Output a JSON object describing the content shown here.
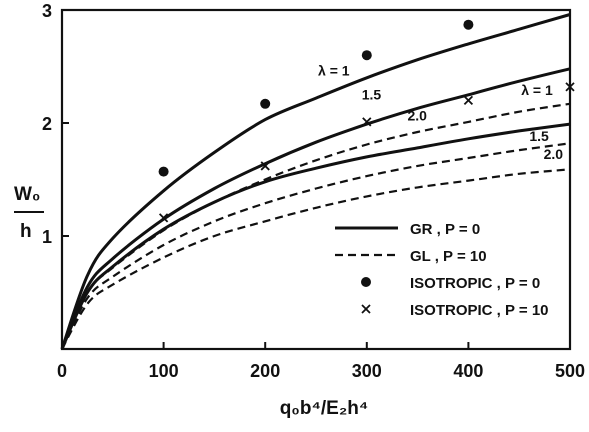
{
  "chart_data": {
    "type": "line",
    "xlabel": "q₀b⁴/E₂h⁴",
    "ylabel_top": "W₀",
    "ylabel_bottom": "h",
    "xlim": [
      0,
      500
    ],
    "ylim": [
      0,
      3
    ],
    "x_ticks": [
      0,
      100,
      200,
      300,
      400,
      500
    ],
    "y_ticks": [
      1,
      2,
      3
    ],
    "x_tick_labels": [
      "0",
      "100",
      "200",
      "300",
      "400",
      "500"
    ],
    "y_tick_labels": [
      "1",
      "2",
      "3"
    ],
    "grid": false,
    "legend_position": "lower-right",
    "legend": [
      {
        "style": "solid",
        "text": "GR , P = 0"
      },
      {
        "style": "dashed",
        "text": "GL , P = 10"
      },
      {
        "style": "dot",
        "text": "ISOTROPIC , P = 0"
      },
      {
        "style": "cross",
        "text": "ISOTROPIC , P = 10"
      }
    ],
    "series": [
      {
        "style": "solid",
        "label": "λ = 1",
        "x": [
          0,
          25,
          50,
          100,
          150,
          200,
          250,
          300,
          350,
          400,
          450,
          500
        ],
        "y": [
          0,
          0.65,
          0.98,
          1.4,
          1.74,
          2.03,
          2.22,
          2.4,
          2.56,
          2.7,
          2.83,
          2.96
        ]
      },
      {
        "style": "solid",
        "label": "1.5",
        "x": [
          0,
          25,
          50,
          100,
          150,
          200,
          250,
          300,
          350,
          400,
          450,
          500
        ],
        "y": [
          0,
          0.55,
          0.8,
          1.15,
          1.42,
          1.64,
          1.83,
          1.99,
          2.13,
          2.25,
          2.37,
          2.48
        ]
      },
      {
        "style": "solid",
        "label": "2.0",
        "x": [
          0,
          25,
          50,
          100,
          150,
          200,
          250,
          300,
          350,
          400,
          450,
          500
        ],
        "y": [
          0,
          0.5,
          0.73,
          1.06,
          1.3,
          1.48,
          1.6,
          1.7,
          1.78,
          1.86,
          1.93,
          1.99
        ]
      },
      {
        "style": "dashed",
        "label": "λ = 1",
        "x": [
          0,
          25,
          50,
          100,
          150,
          200,
          250,
          300,
          350,
          400,
          450,
          500
        ],
        "y": [
          0,
          0.5,
          0.72,
          1.05,
          1.3,
          1.5,
          1.67,
          1.81,
          1.92,
          2.01,
          2.1,
          2.17
        ]
      },
      {
        "style": "dashed",
        "label": "1.5",
        "x": [
          0,
          25,
          50,
          100,
          150,
          200,
          250,
          300,
          350,
          400,
          450,
          500
        ],
        "y": [
          0,
          0.45,
          0.64,
          0.92,
          1.13,
          1.29,
          1.42,
          1.53,
          1.62,
          1.69,
          1.76,
          1.82
        ]
      },
      {
        "style": "dashed",
        "label": "2.0",
        "x": [
          0,
          25,
          50,
          100,
          150,
          200,
          250,
          300,
          350,
          400,
          450,
          500
        ],
        "y": [
          0,
          0.4,
          0.57,
          0.81,
          1.0,
          1.13,
          1.25,
          1.35,
          1.43,
          1.49,
          1.55,
          1.59
        ]
      }
    ],
    "points": [
      {
        "marker": "dot",
        "x": [
          100,
          200,
          300,
          400
        ],
        "y": [
          1.57,
          2.17,
          2.6,
          2.87
        ]
      },
      {
        "marker": "cross",
        "x": [
          100,
          200,
          300,
          400,
          500
        ],
        "y": [
          1.16,
          1.62,
          2.01,
          2.2,
          2.32
        ]
      }
    ]
  }
}
